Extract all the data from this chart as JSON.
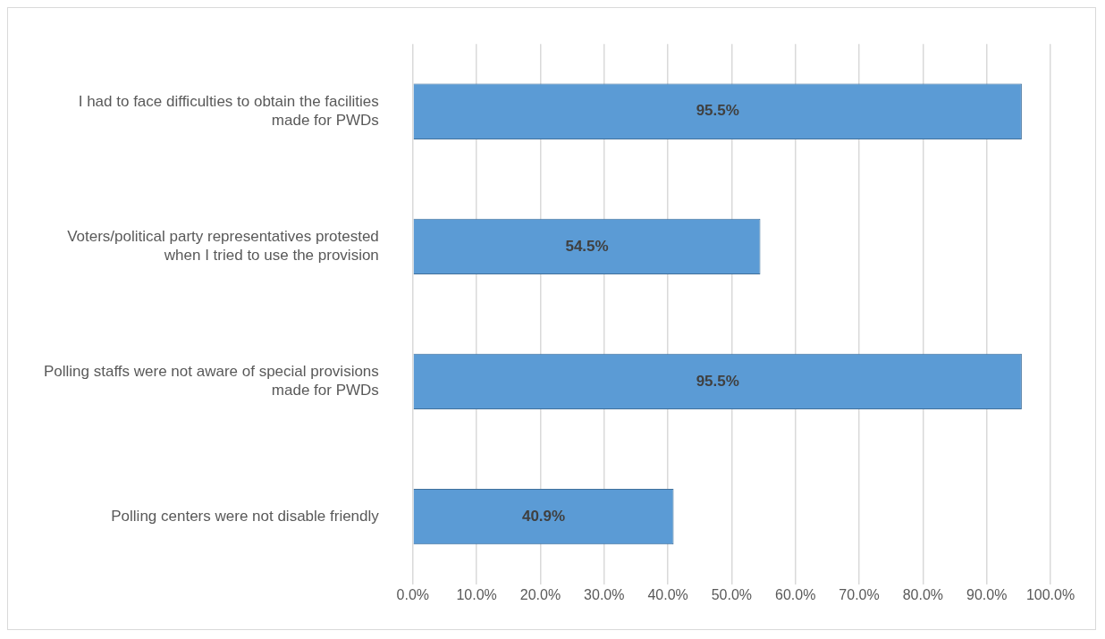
{
  "chart_data": {
    "type": "bar",
    "orientation": "horizontal",
    "categories": [
      "I had to face difficulties to obtain the facilities made for PWDs",
      "Voters/political party representatives protested when I tried to use the provision",
      "Polling staffs were not aware of special provisions made for PWDs",
      "Polling centers were not disable friendly"
    ],
    "values": [
      95.5,
      54.5,
      95.5,
      40.9
    ],
    "value_labels": [
      "95.5%",
      "54.5%",
      "95.5%",
      "40.9%"
    ],
    "color": "#5b9bd5",
    "xlim": [
      0,
      100
    ],
    "xticks": [
      {
        "value": 0,
        "label": "0.0%"
      },
      {
        "value": 10,
        "label": "10.0%"
      },
      {
        "value": 20,
        "label": "20.0%"
      },
      {
        "value": 30,
        "label": "30.0%"
      },
      {
        "value": 40,
        "label": "40.0%"
      },
      {
        "value": 50,
        "label": "50.0%"
      },
      {
        "value": 60,
        "label": "60.0%"
      },
      {
        "value": 70,
        "label": "70.0%"
      },
      {
        "value": 80,
        "label": "80.0%"
      },
      {
        "value": 90,
        "label": "90.0%"
      },
      {
        "value": 100,
        "label": "100.0%"
      }
    ],
    "grid": "x"
  }
}
